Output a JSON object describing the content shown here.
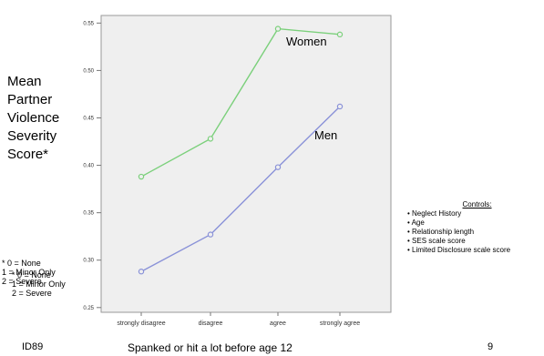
{
  "chart_data": {
    "type": "line",
    "categories": [
      "strongly disagree",
      "disagree",
      "agree",
      "strongly agree"
    ],
    "series": [
      {
        "name": "Women",
        "values": [
          0.388,
          0.428,
          0.544,
          0.538
        ],
        "color": "#7bd07b"
      },
      {
        "name": "Men",
        "values": [
          0.288,
          0.327,
          0.398,
          0.462
        ],
        "color": "#8a92d8"
      }
    ],
    "yticks": [
      "0.25",
      "0.30",
      "0.35",
      "0.40",
      "0.45",
      "0.50",
      "0.55"
    ],
    "ylim": [
      0.245,
      0.558
    ],
    "ylabel": [
      "Mean",
      "Partner",
      "Violence",
      "Severity",
      "Score*"
    ],
    "xlabel": "Spanked or hit a lot before age 12",
    "grid": false,
    "background": "#efefef"
  },
  "footnote": [
    "* 0 = None",
    "1 = Minor Only",
    "2 = Severe"
  ],
  "footnote_overlap": [
    "* 0 = None",
    "1 = Minor Only",
    "2 = Severe"
  ],
  "controls": {
    "title": "Controls:",
    "items": [
      "• Neglect History",
      "• Age",
      "• Relationship length",
      "• SES scale score",
      "• Limited Disclosure  scale score"
    ]
  },
  "page_id": "ID89",
  "page_number": "9"
}
